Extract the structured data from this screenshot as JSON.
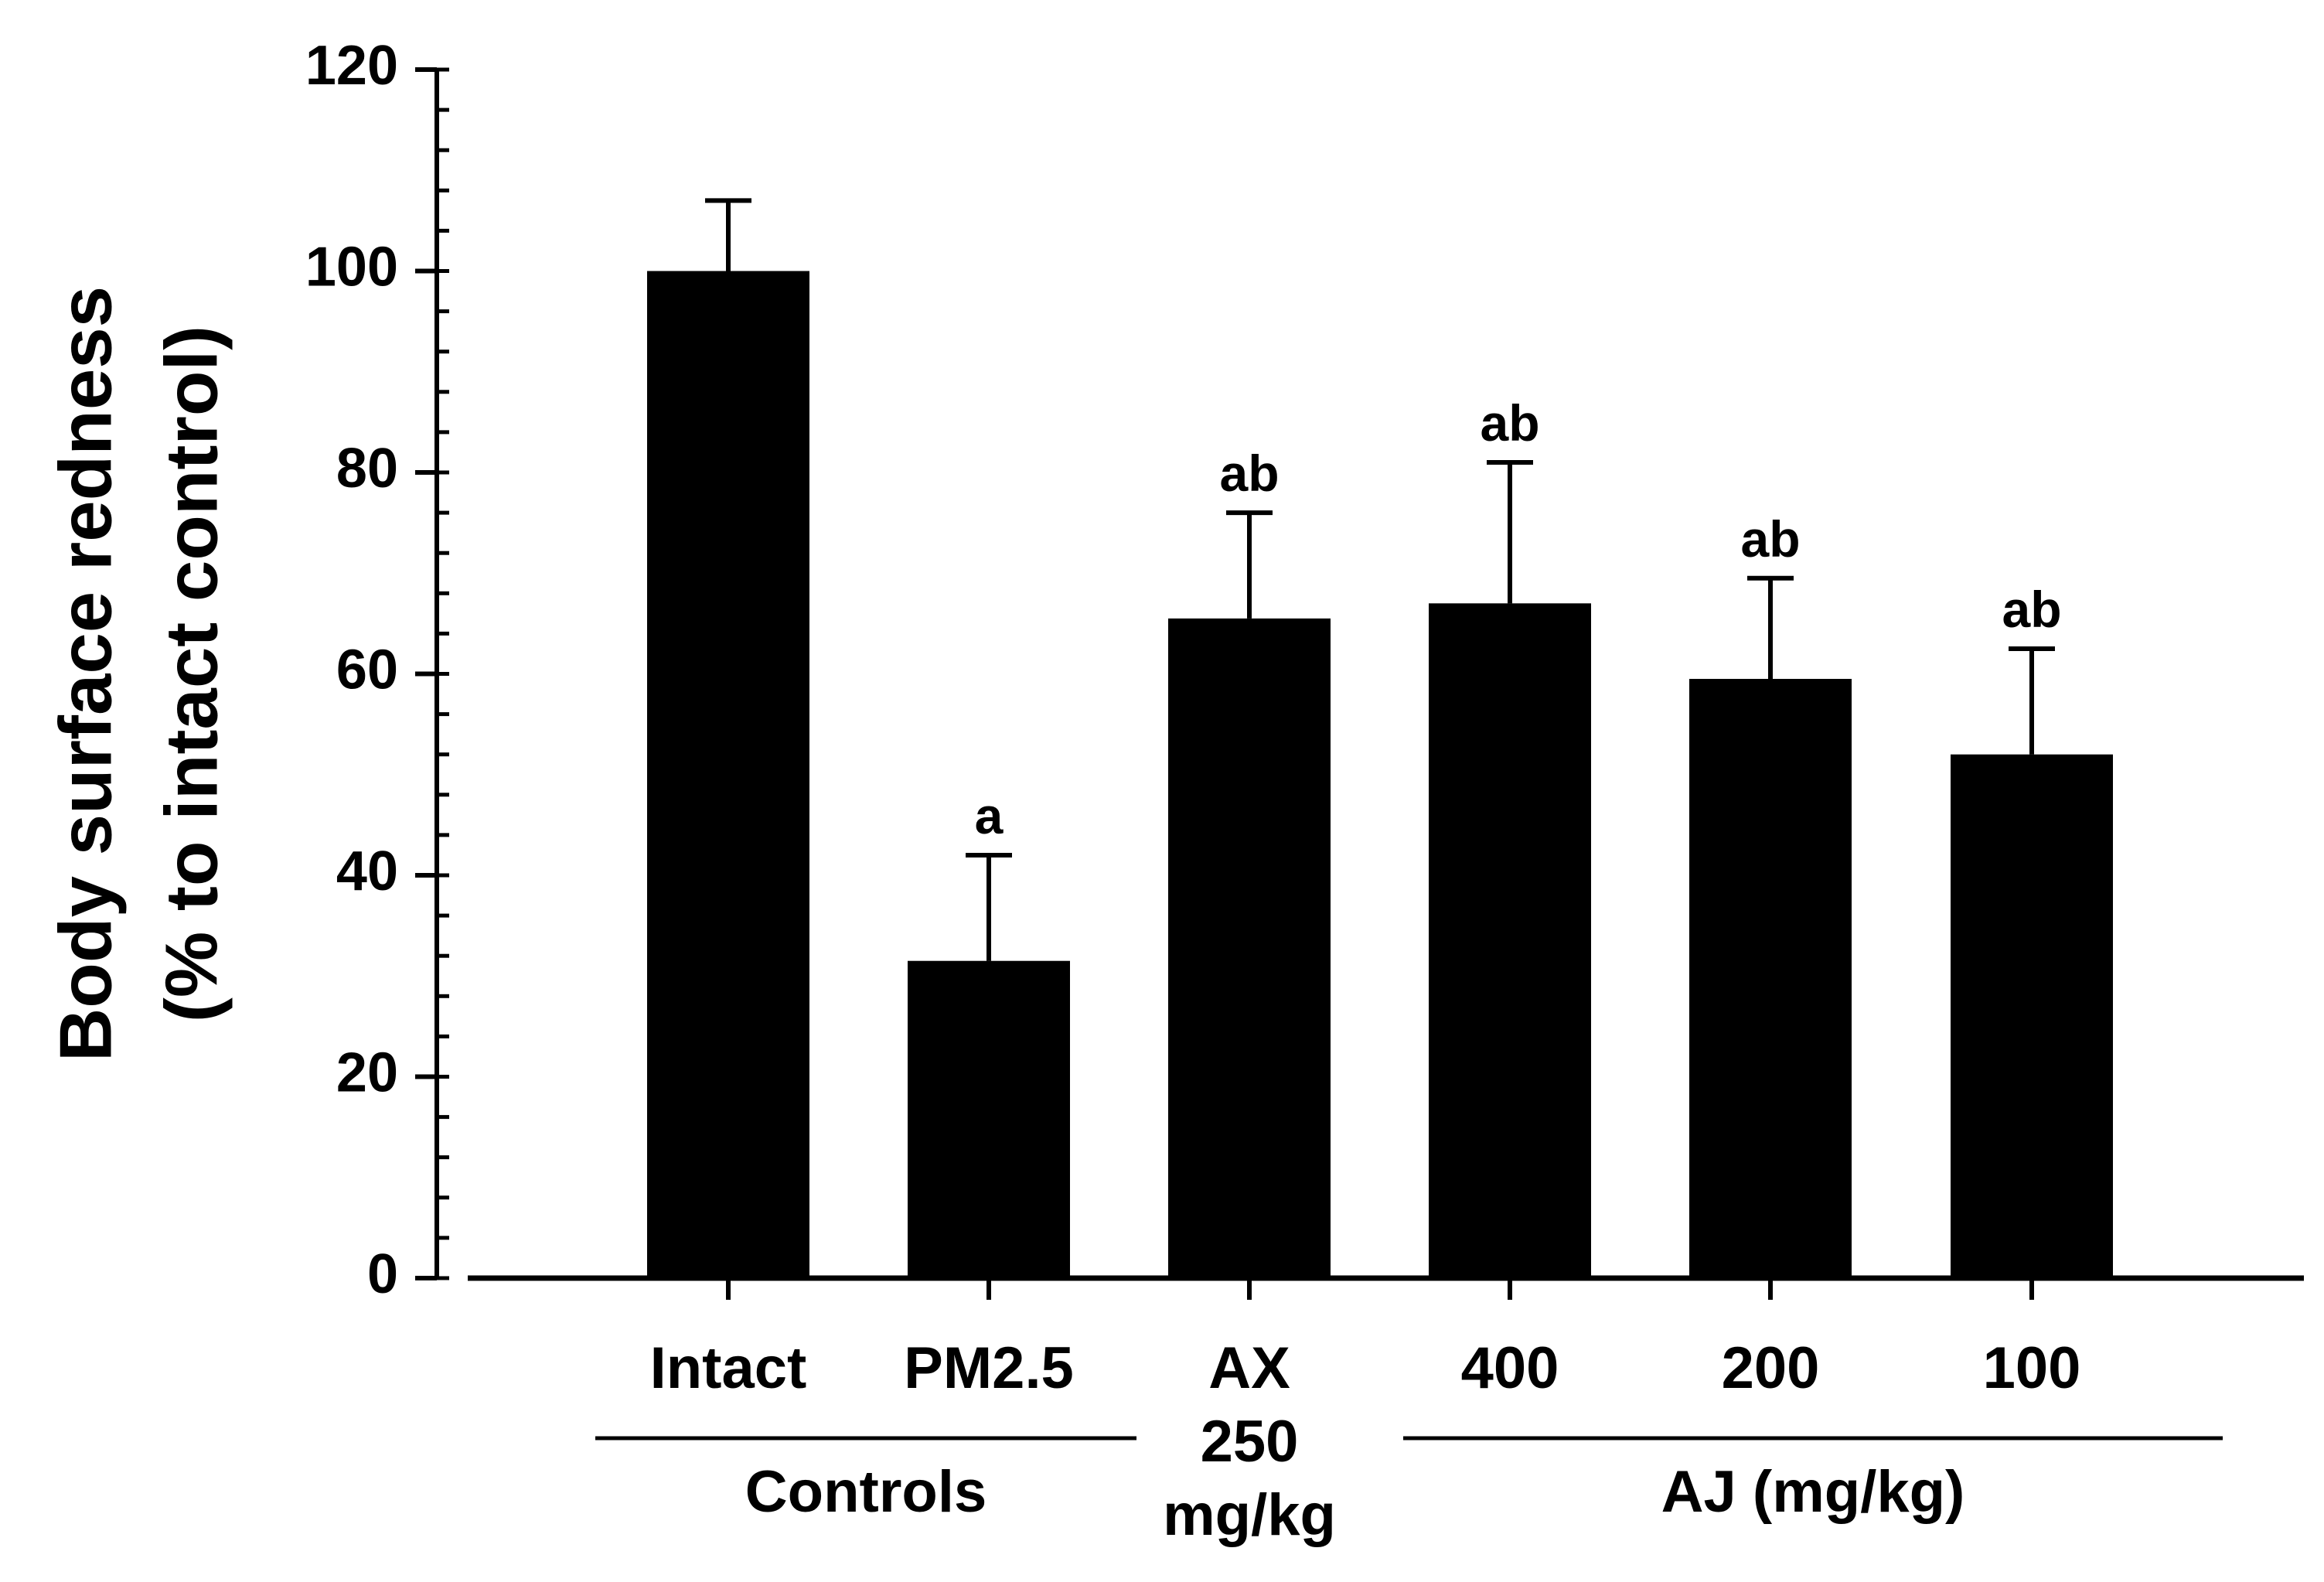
{
  "chart_data": {
    "type": "bar",
    "title": "",
    "xlabel": "",
    "ylabel_lines": [
      "Body surface redness",
      "(% to intact control)"
    ],
    "ylim": [
      0,
      120
    ],
    "yticks": [
      0,
      20,
      40,
      60,
      80,
      100,
      120
    ],
    "minor_tick_step": 4,
    "categories": [
      "Intact",
      "PM2.5",
      "AX",
      "400",
      "200",
      "100"
    ],
    "category_sublabels": [
      "",
      "",
      "250\nmg/kg",
      "",
      "",
      ""
    ],
    "values": [
      100,
      31.5,
      65.5,
      67,
      59.5,
      52
    ],
    "errors": [
      7,
      10.5,
      10.5,
      14,
      10,
      10.5
    ],
    "annotations": [
      "",
      "a",
      "ab",
      "ab",
      "ab",
      "ab"
    ],
    "groups": [
      {
        "label": "Controls",
        "categories": [
          "Intact",
          "PM2.5"
        ]
      },
      {
        "label": "AJ (mg/kg)",
        "categories": [
          "400",
          "200",
          "100"
        ]
      }
    ],
    "colors": {
      "bar": "#000000",
      "axis": "#000000"
    }
  }
}
